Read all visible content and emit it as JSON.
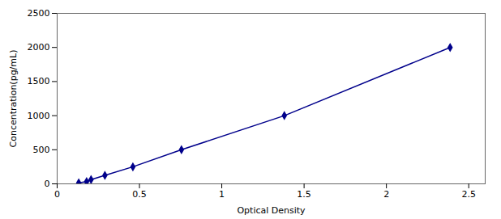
{
  "chart_data": {
    "type": "line",
    "x": [
      0.131,
      0.179,
      0.206,
      0.29,
      0.46,
      0.755,
      1.38,
      2.387
    ],
    "values": [
      15.625,
      31.25,
      62.5,
      125,
      250,
      500,
      1000,
      2000
    ],
    "color": "#00008B",
    "marker": "diamond",
    "xlabel": "Optical Density",
    "ylabel": "Concentration(pg/mL)",
    "xlim": [
      0.0,
      2.6
    ],
    "ylim": [
      0,
      2500
    ],
    "xticks": [
      0,
      0.5,
      1,
      1.5,
      2,
      2.5
    ],
    "yticks": [
      0,
      500,
      1000,
      1500,
      2000,
      2500
    ],
    "grid": false
  }
}
